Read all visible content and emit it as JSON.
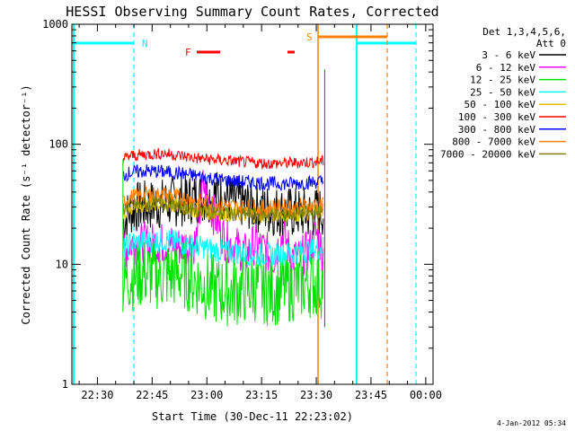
{
  "chart_data": {
    "type": "line",
    "title": "HESSI Observing Summary Count Rates, Corrected",
    "xlabel": "Start Time (30-Dec-11 22:23:02)",
    "ylabel": "Corrected Count Rate (s⁻¹ detector⁻¹)",
    "y_scale": "log",
    "ylim": [
      1,
      1000
    ],
    "xlim_minutes_since_start": [
      0,
      99
    ],
    "x_ticks": [
      "22:30",
      "22:45",
      "23:00",
      "23:15",
      "23:30",
      "23:45",
      "00:00"
    ],
    "y_ticks": [
      "1",
      "10",
      "100",
      "1000"
    ],
    "legend": {
      "placement": "right",
      "header": [
        "Det 1,3,4,5,6,",
        "Att 0"
      ],
      "entries": [
        {
          "label": "3 - 6 keV",
          "color": "#000000"
        },
        {
          "label": "6 - 12 keV",
          "color": "#ff00ff"
        },
        {
          "label": "12 - 25 keV",
          "color": "#00e000"
        },
        {
          "label": "25 - 50 keV",
          "color": "#00ffff"
        },
        {
          "label": "50 - 100 keV",
          "color": "#e0c000"
        },
        {
          "label": "100 - 300 keV",
          "color": "#ff0000"
        },
        {
          "label": "300 - 800 keV",
          "color": "#0000ff"
        },
        {
          "label": "800 - 7000 keV",
          "color": "#ff8000"
        },
        {
          "label": "7000 - 20000 keV",
          "color": "#808000"
        }
      ]
    },
    "series": [
      {
        "name": "3 - 6 keV",
        "color": "#000000",
        "x": [
          14,
          16,
          18,
          25,
          30,
          35,
          40,
          45,
          50,
          55,
          60,
          65,
          69
        ],
        "y": [
          22,
          28,
          30,
          32,
          34,
          36,
          38,
          34,
          30,
          28,
          27,
          26,
          28
        ]
      },
      {
        "name": "6 - 12 keV",
        "color": "#ff00ff",
        "x": [
          14,
          16,
          20,
          25,
          30,
          34,
          36,
          38,
          40,
          42,
          45,
          48,
          50,
          53,
          55,
          58,
          60,
          62,
          65,
          67,
          69
        ],
        "y": [
          13,
          15,
          15,
          15,
          14,
          15,
          46,
          30,
          22,
          16,
          14,
          12,
          15,
          13,
          11,
          18,
          12,
          11,
          13,
          18,
          12
        ]
      },
      {
        "name": "12 - 25 keV",
        "color": "#00e000",
        "x": [
          14,
          16,
          20,
          25,
          30,
          35,
          40,
          45,
          50,
          55,
          60,
          65,
          69
        ],
        "y": [
          7,
          8,
          8.5,
          8,
          8.5,
          7,
          6,
          6,
          6.5,
          6,
          6.5,
          7,
          7
        ]
      },
      {
        "name": "25 - 50 keV",
        "color": "#00ffff",
        "x": [
          14,
          16,
          20,
          25,
          30,
          35,
          40,
          45,
          50,
          55,
          60,
          65,
          69
        ],
        "y": [
          13,
          15,
          15.5,
          16,
          15,
          14,
          13,
          12.5,
          12,
          12,
          12.5,
          13,
          14
        ]
      },
      {
        "name": "50 - 100 keV",
        "color": "#e0c000",
        "x": [
          14,
          16,
          20,
          25,
          30,
          35,
          40,
          45,
          50,
          55,
          60,
          65,
          69
        ],
        "y": [
          26,
          29,
          31,
          32,
          30,
          28,
          27,
          26,
          26,
          26,
          26,
          27,
          28
        ]
      },
      {
        "name": "100 - 300 keV",
        "color": "#ff0000",
        "x": [
          14,
          16,
          20,
          25,
          30,
          35,
          40,
          45,
          50,
          55,
          60,
          65,
          69
        ],
        "y": [
          75,
          80,
          82,
          84,
          80,
          76,
          74,
          72,
          70,
          69,
          70,
          71,
          72
        ]
      },
      {
        "name": "300 - 800 keV",
        "color": "#0000ff",
        "x": [
          14,
          16,
          20,
          25,
          30,
          35,
          40,
          45,
          50,
          55,
          60,
          65,
          69
        ],
        "y": [
          55,
          58,
          60,
          59,
          57,
          54,
          51,
          49,
          48,
          47,
          47,
          48,
          49
        ]
      },
      {
        "name": "800 - 7000 keV",
        "color": "#ff8000",
        "x": [
          14,
          16,
          20,
          25,
          30,
          35,
          40,
          45,
          50,
          55,
          60,
          65,
          69
        ],
        "y": [
          33,
          36,
          38,
          38,
          36,
          33,
          32,
          30,
          30,
          30,
          30,
          31,
          31
        ]
      },
      {
        "name": "7000 - 20000 keV",
        "color": "#808000",
        "x": [
          14,
          16,
          20,
          25,
          30,
          35,
          40,
          45,
          50,
          55,
          60,
          65,
          69
        ],
        "y": [
          29,
          31,
          32,
          32,
          30,
          28,
          27,
          26,
          26,
          26,
          26,
          27,
          27
        ]
      }
    ],
    "annotations": [
      {
        "label": "N",
        "color": "#00ffff"
      },
      {
        "label": "F",
        "color": "#ff0000"
      },
      {
        "label": "S",
        "color": "#ff8000"
      }
    ],
    "footer": "4-Jan-2012 05:34"
  }
}
